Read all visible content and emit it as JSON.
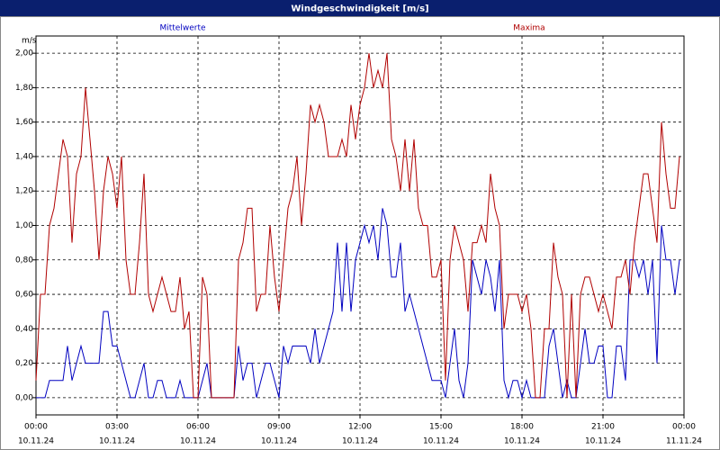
{
  "chart_data": {
    "type": "line",
    "title": "Windgeschwindigkeit [m/s]",
    "y_unit": "m/s",
    "x": [
      0,
      10,
      20,
      30,
      40,
      50,
      60,
      70,
      80,
      90,
      100,
      110,
      120,
      130,
      140,
      150,
      160,
      170,
      180,
      190,
      200,
      210,
      220,
      230,
      240,
      250,
      260,
      270,
      280,
      290,
      300,
      310,
      320,
      330,
      340,
      350,
      360,
      370,
      380,
      390,
      400,
      410,
      420,
      430,
      440,
      450,
      460,
      470,
      480,
      490,
      500,
      510,
      520,
      530,
      540,
      550,
      560,
      570,
      580,
      590,
      600,
      610,
      620,
      630,
      640,
      650,
      660,
      670,
      680,
      690,
      700,
      710,
      720,
      730,
      740,
      750,
      760,
      770,
      780,
      790,
      800,
      810,
      820,
      830,
      840,
      850,
      860,
      870,
      880,
      890,
      900,
      910,
      920,
      930,
      940,
      950,
      960,
      970,
      980,
      990,
      1000,
      1010,
      1020,
      1030,
      1040,
      1050,
      1060,
      1070,
      1080,
      1090,
      1100,
      1110,
      1120,
      1130,
      1140,
      1150,
      1160,
      1170,
      1180,
      1190,
      1200,
      1210,
      1220,
      1230,
      1240,
      1250,
      1260,
      1270,
      1280,
      1290,
      1300,
      1310,
      1320,
      1330,
      1340,
      1350,
      1360,
      1370,
      1380,
      1390,
      1400,
      1410,
      1420,
      1430
    ],
    "series": [
      {
        "name": "Mittelwerte",
        "color": "#0000c0",
        "values": [
          0,
          0,
          0,
          0.1,
          0.1,
          0.1,
          0.1,
          0.3,
          0.1,
          0.2,
          0.3,
          0.2,
          0.2,
          0.2,
          0.2,
          0.5,
          0.5,
          0.3,
          0.3,
          0.2,
          0.1,
          0,
          0,
          0.1,
          0.2,
          0,
          0,
          0.1,
          0.1,
          0,
          0,
          0,
          0.1,
          0,
          0,
          0,
          0,
          0.1,
          0.2,
          0,
          0,
          0,
          0,
          0,
          0,
          0.3,
          0.1,
          0.2,
          0.2,
          0,
          0.1,
          0.2,
          0.2,
          0.1,
          0,
          0.3,
          0.2,
          0.3,
          0.3,
          0.3,
          0.3,
          0.2,
          0.4,
          0.2,
          0.3,
          0.4,
          0.5,
          0.9,
          0.5,
          0.9,
          0.5,
          0.8,
          0.9,
          1.0,
          0.9,
          1.0,
          0.8,
          1.1,
          1.0,
          0.7,
          0.7,
          0.9,
          0.5,
          0.6,
          0.5,
          0.4,
          0.3,
          0.2,
          0.1,
          0.1,
          0.1,
          0,
          0.2,
          0.4,
          0.1,
          0,
          0.2,
          0.8,
          0.7,
          0.6,
          0.8,
          0.7,
          0.5,
          0.8,
          0.1,
          0,
          0.1,
          0.1,
          0,
          0.1,
          0,
          0,
          0,
          0,
          0.3,
          0.4,
          0.2,
          0,
          0.1,
          0,
          0,
          0.2,
          0.4,
          0.2,
          0.2,
          0.3,
          0.3,
          0,
          0,
          0.3,
          0.3,
          0.1,
          0.8,
          0.8,
          0.7,
          0.8,
          0.6,
          0.8,
          0.2,
          1.0,
          0.8,
          0.8,
          0.6,
          0.8
        ]
      },
      {
        "name": "Maxima",
        "color": "#b00000",
        "values": [
          0.1,
          0.6,
          0.6,
          1.0,
          1.1,
          1.3,
          1.5,
          1.4,
          0.9,
          1.3,
          1.4,
          1.8,
          1.5,
          1.2,
          0.8,
          1.2,
          1.4,
          1.3,
          1.1,
          1.4,
          0.8,
          0.6,
          0.6,
          0.9,
          1.3,
          0.6,
          0.5,
          0.6,
          0.7,
          0.6,
          0.5,
          0.5,
          0.7,
          0.4,
          0.5,
          0,
          0,
          0.7,
          0.6,
          0,
          0,
          0,
          0,
          0,
          0,
          0.8,
          0.9,
          1.1,
          1.1,
          0.5,
          0.6,
          0.6,
          1.0,
          0.7,
          0.5,
          0.8,
          1.1,
          1.2,
          1.4,
          1.0,
          1.3,
          1.7,
          1.6,
          1.7,
          1.6,
          1.4,
          1.4,
          1.4,
          1.5,
          1.4,
          1.7,
          1.5,
          1.7,
          1.8,
          2.0,
          1.8,
          1.9,
          1.8,
          2.0,
          1.5,
          1.4,
          1.2,
          1.5,
          1.2,
          1.5,
          1.1,
          1.0,
          1.0,
          0.7,
          0.7,
          0.8,
          0.1,
          0.8,
          1.0,
          0.9,
          0.8,
          0.5,
          0.9,
          0.9,
          1.0,
          0.9,
          1.3,
          1.1,
          1.0,
          0.4,
          0.6,
          0.6,
          0.6,
          0.5,
          0.6,
          0.4,
          0,
          0,
          0.4,
          0.4,
          0.9,
          0.7,
          0.6,
          0,
          0.6,
          0,
          0.6,
          0.7,
          0.7,
          0.6,
          0.5,
          0.6,
          0.5,
          0.4,
          0.7,
          0.7,
          0.8,
          0.6,
          0.9,
          1.1,
          1.3,
          1.3,
          1.1,
          0.9,
          1.6,
          1.3,
          1.1,
          1.1,
          1.4
        ]
      }
    ],
    "xlim": [
      0,
      1440
    ],
    "xticks": [
      {
        "value": 0,
        "label": "00:00"
      },
      {
        "value": 180,
        "label": "03:00"
      },
      {
        "value": 360,
        "label": "06:00"
      },
      {
        "value": 540,
        "label": "09:00"
      },
      {
        "value": 720,
        "label": "12:00"
      },
      {
        "value": 900,
        "label": "15:00"
      },
      {
        "value": 1080,
        "label": "18:00"
      },
      {
        "value": 1260,
        "label": "21:00"
      },
      {
        "value": 1440,
        "label": "00:00"
      }
    ],
    "xtick_dates": [
      "10.11.24",
      "10.11.24",
      "10.11.24",
      "10.11.24",
      "10.11.24",
      "10.11.24",
      "10.11.24",
      "10.11.24",
      "11.11.24"
    ],
    "ylim": [
      -0.1,
      2.1
    ],
    "yticks": [
      {
        "value": 0,
        "label": "0,00"
      },
      {
        "value": 0.2,
        "label": "0,20"
      },
      {
        "value": 0.4,
        "label": "0,40"
      },
      {
        "value": 0.6,
        "label": "0,60"
      },
      {
        "value": 0.8,
        "label": "0,80"
      },
      {
        "value": 1.0,
        "label": "1,00"
      },
      {
        "value": 1.2,
        "label": "1,20"
      },
      {
        "value": 1.4,
        "label": "1,40"
      },
      {
        "value": 1.6,
        "label": "1,60"
      },
      {
        "value": 1.8,
        "label": "1,80"
      },
      {
        "value": 2.0,
        "label": "2,00"
      }
    ],
    "grid": true
  }
}
